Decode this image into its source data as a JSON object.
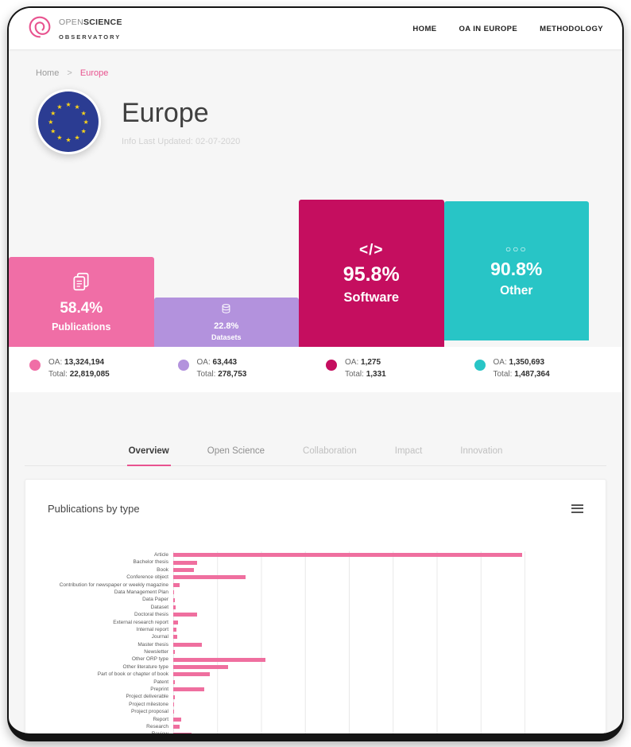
{
  "header": {
    "brand": {
      "word1": "OPEN",
      "word2": "SCIENCE",
      "line2": "OBSERVATORY"
    },
    "nav": [
      {
        "label": "HOME"
      },
      {
        "label": "OA IN EUROPE"
      },
      {
        "label": "METHODOLOGY"
      }
    ]
  },
  "breadcrumb": {
    "home": "Home",
    "separator": ">",
    "current": "Europe"
  },
  "page": {
    "title": "Europe",
    "last_updated": "Info Last Updated: 02-07-2020"
  },
  "stat_cards": [
    {
      "label": "Publications",
      "percent": "58.4%",
      "percent_value": 58.4,
      "color": "#f06ea6",
      "icon": "publications-icon",
      "oa_label": "OA:",
      "oa": "13,324,194",
      "total_label": "Total:",
      "total": "22,819,085"
    },
    {
      "label": "Datasets",
      "percent": "22.8%",
      "percent_value": 22.8,
      "color": "#b392dd",
      "icon": "datasets-icon",
      "oa_label": "OA:",
      "oa": "63,443",
      "total_label": "Total:",
      "total": "278,753"
    },
    {
      "label": "Software",
      "percent": "95.8%",
      "percent_value": 95.8,
      "color": "#c50e5f",
      "icon": "software-icon",
      "icon_text": "</>",
      "oa_label": "OA:",
      "oa": "1,275",
      "total_label": "Total:",
      "total": "1,331"
    },
    {
      "label": "Other",
      "percent": "90.8%",
      "percent_value": 90.8,
      "color": "#28c5c6",
      "icon": "other-icon",
      "icon_text": "○○○",
      "oa_label": "OA:",
      "oa": "1,350,693",
      "total_label": "Total:",
      "total": "1,487,364"
    }
  ],
  "tabs": [
    {
      "label": "Overview",
      "active": true
    },
    {
      "label": "Open Science",
      "active": false
    },
    {
      "label": "Collaboration",
      "active": false
    },
    {
      "label": "Impact",
      "active": false
    },
    {
      "label": "Innovation",
      "active": false
    }
  ],
  "chart_card": {
    "title": "Publications by type"
  },
  "chart_data": {
    "type": "bar",
    "orientation": "horizontal",
    "title": "Publications by type",
    "bar_color": "#ef6f9f",
    "grid": true,
    "xlim": [
      0,
      16000000
    ],
    "gridline_step": 2000000,
    "categories": [
      "Article",
      "Bachelor thesis",
      "Book",
      "Conference object",
      "Contribution for newspaper or weekly magazine",
      "Data Management Plan",
      "Data Paper",
      "Dataset",
      "Doctoral thesis",
      "External research report",
      "Internal report",
      "Journal",
      "Master thesis",
      "Newsletter",
      "Other ORP type",
      "Other literature type",
      "Part of book or chapter of book",
      "Patent",
      "Preprint",
      "Project deliverable",
      "Project milestone",
      "Project proposal",
      "Report",
      "Research",
      "Review"
    ],
    "values": [
      15900000,
      1100000,
      950000,
      3300000,
      300000,
      40000,
      70000,
      100000,
      1100000,
      220000,
      150000,
      180000,
      1300000,
      70000,
      4200000,
      2500000,
      1650000,
      70000,
      1400000,
      80000,
      40000,
      50000,
      360000,
      300000,
      840000
    ]
  }
}
